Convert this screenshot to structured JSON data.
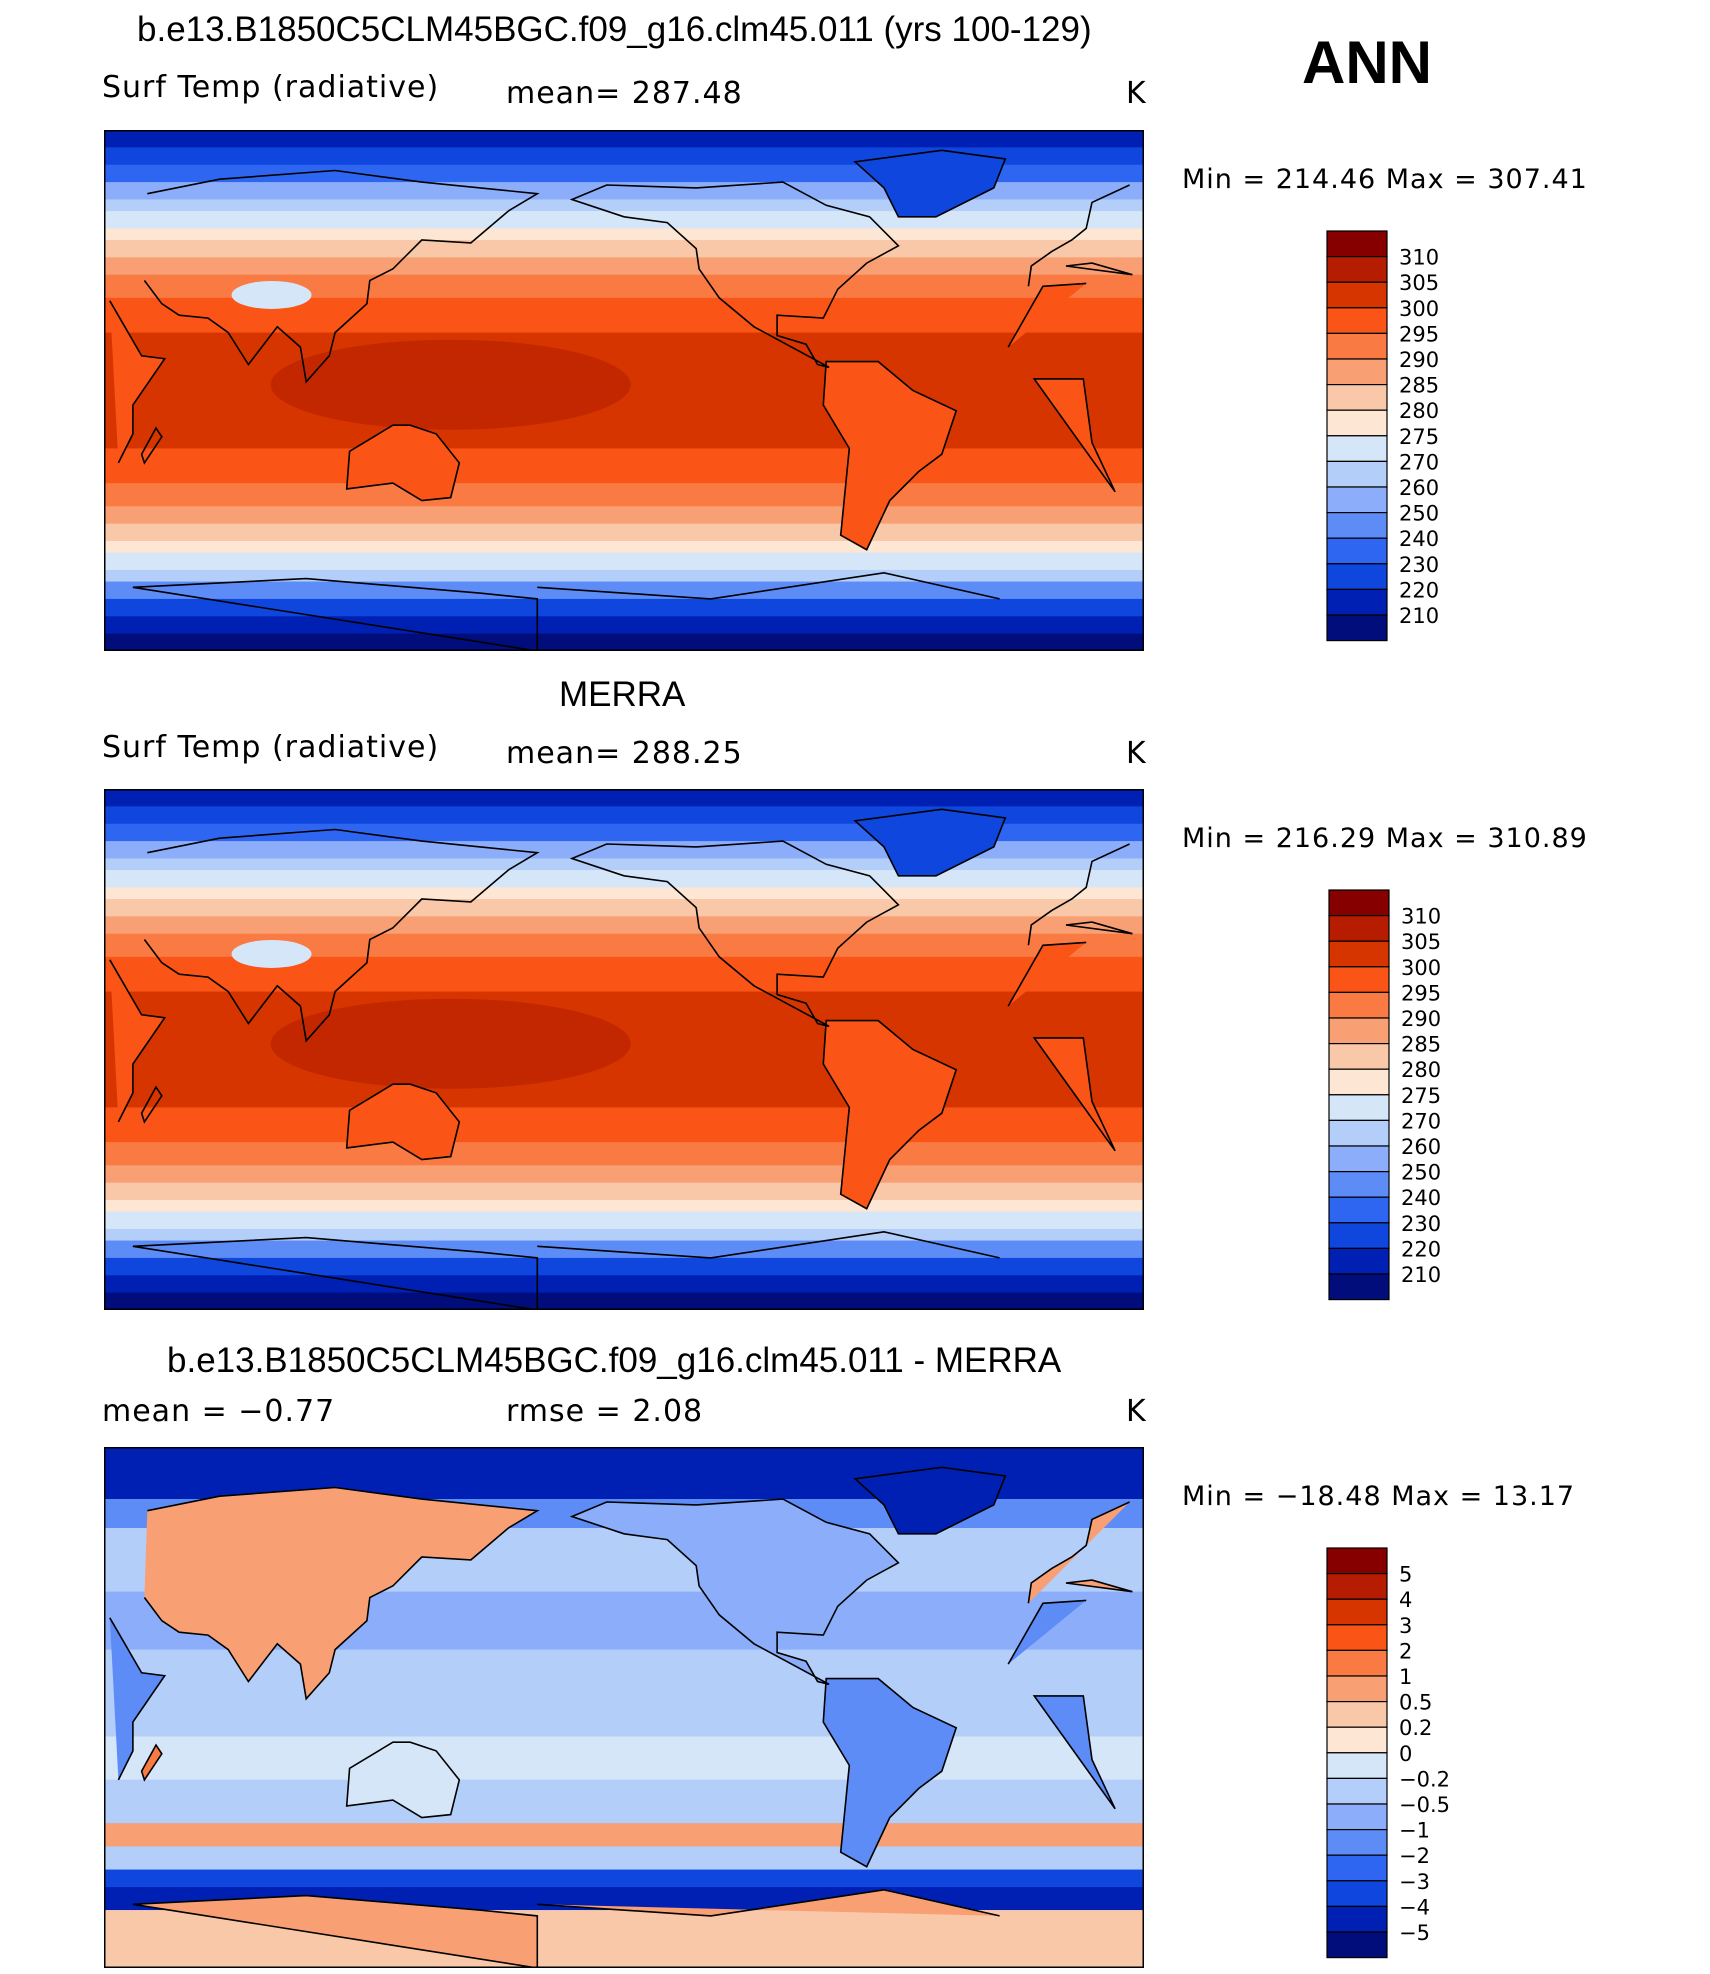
{
  "season": "ANN",
  "panels": [
    {
      "title": "b.e13.B1850C5CLM45BGC.f09_g16.clm45.011 (yrs 100-129)",
      "left_label": "Surf Temp (radiative)",
      "mid_label": "mean=  287.48",
      "unit": "K",
      "minmax": "Min  =  214.46  Max  =  307.41",
      "colorbar": {
        "labels": [
          "310",
          "305",
          "300",
          "295",
          "290",
          "285",
          "280",
          "275",
          "270",
          "260",
          "250",
          "240",
          "230",
          "220",
          "210"
        ],
        "colors": [
          "#860000",
          "#b51c00",
          "#d63500",
          "#fa5416",
          "#fa7a44",
          "#f99f74",
          "#f9c8a8",
          "#fde6d3",
          "#d6e6f9",
          "#b4cefa",
          "#8caefa",
          "#5d8cf6",
          "#2e66f2",
          "#0e46de",
          "#0020b4",
          "#000d7a"
        ]
      }
    },
    {
      "title": "MERRA",
      "left_label": "Surf Temp (radiative)",
      "mid_label": "mean=  288.25",
      "unit": "K",
      "minmax": "Min  =  216.29  Max  =  310.89",
      "colorbar": {
        "labels": [
          "310",
          "305",
          "300",
          "295",
          "290",
          "285",
          "280",
          "275",
          "270",
          "260",
          "250",
          "240",
          "230",
          "220",
          "210"
        ],
        "colors": [
          "#860000",
          "#b51c00",
          "#d63500",
          "#fa5416",
          "#fa7a44",
          "#f99f74",
          "#f9c8a8",
          "#fde6d3",
          "#d6e6f9",
          "#b4cefa",
          "#8caefa",
          "#5d8cf6",
          "#2e66f2",
          "#0e46de",
          "#0020b4",
          "#000d7a"
        ]
      }
    },
    {
      "title": "b.e13.B1850C5CLM45BGC.f09_g16.clm45.011 - MERRA",
      "left_label": "mean  =    −0.77",
      "mid_label": "rmse  =     2.08",
      "unit": "K",
      "minmax": "Min  = −18.48  Max  =   13.17",
      "colorbar": {
        "labels": [
          "5",
          "4",
          "3",
          "2",
          "1",
          "0.5",
          "0.2",
          "0",
          "−0.2",
          "−0.5",
          "−1",
          "−2",
          "−3",
          "−4",
          "−5"
        ],
        "colors": [
          "#860000",
          "#b51c00",
          "#d63500",
          "#fa5416",
          "#fa7a44",
          "#f99f74",
          "#f9c8a8",
          "#fde6d3",
          "#d6e6f9",
          "#b4cefa",
          "#8caefa",
          "#5d8cf6",
          "#2e66f2",
          "#0e46de",
          "#0020b4",
          "#000d7a"
        ]
      }
    }
  ]
}
